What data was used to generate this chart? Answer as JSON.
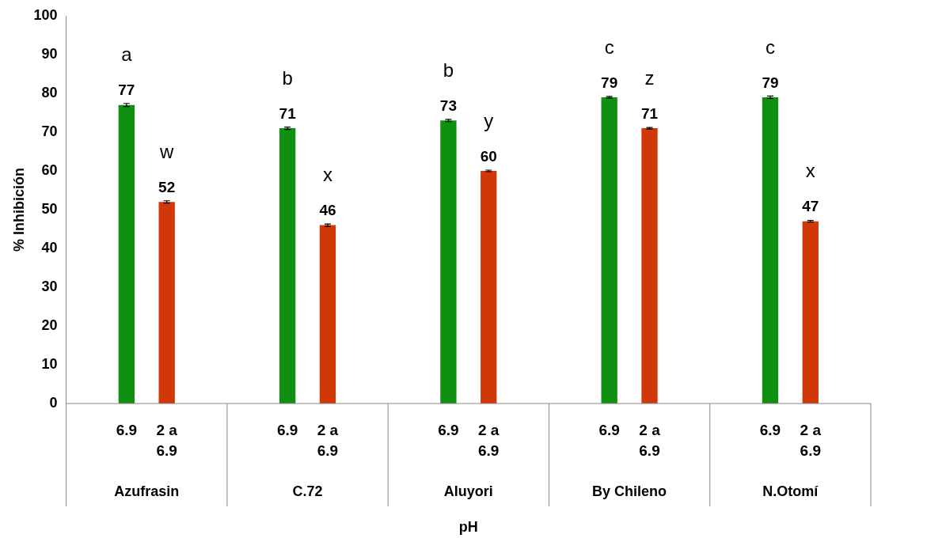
{
  "chart_data": {
    "type": "bar",
    "xlabel": "pH",
    "ylabel": "% Inhibición",
    "categories": [
      "Azufrasin",
      "C.72",
      "Aluyori",
      "By Chileno",
      "N.Otomí"
    ],
    "series": [
      {
        "name": "6.9",
        "color": "#109010",
        "values": [
          77,
          71,
          73,
          79,
          79
        ],
        "errors": [
          0.4,
          0.3,
          0.3,
          0.2,
          0.3
        ]
      },
      {
        "name": "2 a 6.9",
        "color": "#d03808",
        "values": [
          52,
          46,
          60,
          71,
          47
        ],
        "errors": [
          0.3,
          0.3,
          0.2,
          0.2,
          0.2
        ]
      }
    ],
    "ylim": [
      0,
      100
    ],
    "yticks": [
      0,
      10,
      20,
      30,
      40,
      50,
      60,
      70,
      80,
      90,
      100
    ],
    "grid": false,
    "legend": false,
    "data_labels": true,
    "annotations": [
      "a",
      "w",
      "b",
      "x",
      "b",
      "y",
      "c",
      "z",
      "c",
      "x"
    ]
  }
}
